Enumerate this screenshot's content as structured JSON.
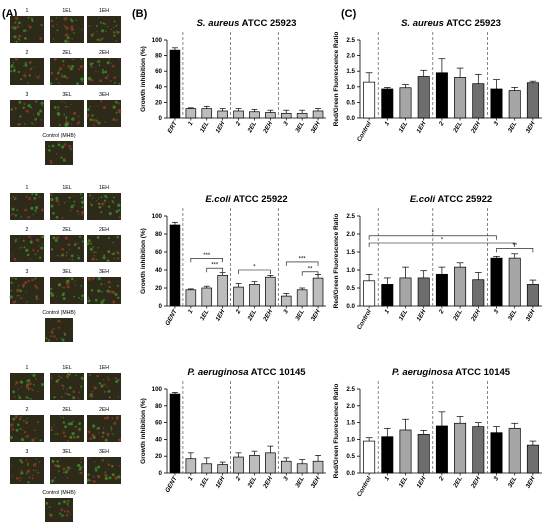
{
  "panel_labels": {
    "a": "(A)",
    "b": "(B)",
    "c": "(C)"
  },
  "colors": {
    "micro_bg": "#2e2a1a",
    "micro_green": "#3c8a2a",
    "micro_red": "#8a3a22",
    "bar_black": "#000000",
    "bar_white": "#ffffff",
    "bar_light": "#bdbdbd",
    "bar_mid": "#a6a6a6",
    "bar_dark": "#6e6e6e"
  },
  "micrographs": [
    {
      "tiles": [
        [
          {
            "label": "1"
          },
          {
            "label": "1EL"
          },
          {
            "label": "1EH"
          }
        ],
        [
          {
            "label": "2"
          },
          {
            "label": "2EL"
          },
          {
            "label": "2EH"
          }
        ],
        [
          {
            "label": "3"
          },
          {
            "label": "3EL"
          },
          {
            "label": "3EH"
          }
        ]
      ],
      "control": {
        "label": "Control (MHB)"
      }
    },
    {
      "tiles": [
        [
          {
            "label": "1"
          },
          {
            "label": "1EL"
          },
          {
            "label": "1EH"
          }
        ],
        [
          {
            "label": "2"
          },
          {
            "label": "2EL"
          },
          {
            "label": "2EH"
          }
        ],
        [
          {
            "label": "3"
          },
          {
            "label": "3EL"
          },
          {
            "label": "3EH"
          }
        ]
      ],
      "control": {
        "label": "Control (MHB)"
      }
    },
    {
      "tiles": [
        [
          {
            "label": "1"
          },
          {
            "label": "1EL"
          },
          {
            "label": "1EH"
          }
        ],
        [
          {
            "label": "2"
          },
          {
            "label": "2EL"
          },
          {
            "label": "2EH"
          }
        ],
        [
          {
            "label": "3"
          },
          {
            "label": "3EL"
          },
          {
            "label": "3EH"
          }
        ]
      ],
      "control": {
        "label": "Control (MHB)"
      }
    }
  ],
  "chart_data": [
    {
      "type": "bar",
      "title": "S. aureus ATCC 25923",
      "ylabel": "Growth inhibition (%)",
      "xlabel": "",
      "ylim": [
        0,
        100
      ],
      "yticks": [
        0,
        20,
        40,
        60,
        80,
        100
      ],
      "categories": [
        "ERT",
        "1",
        "1EL",
        "1EH",
        "2",
        "2EL",
        "2EH",
        "3",
        "3EL",
        "3EH"
      ],
      "values": [
        87,
        12,
        12,
        9,
        9,
        8,
        7,
        6,
        6,
        9
      ],
      "errors": [
        3,
        1,
        3,
        3,
        3,
        3,
        3,
        4,
        4,
        3
      ],
      "fills": [
        "#000000",
        "#bdbdbd",
        "#bdbdbd",
        "#bdbdbd",
        "#bdbdbd",
        "#bdbdbd",
        "#bdbdbd",
        "#bdbdbd",
        "#bdbdbd",
        "#bdbdbd"
      ],
      "separators_after": [
        0,
        3,
        6
      ],
      "significance": []
    },
    {
      "type": "bar",
      "title": "S. aureus ATCC 25923",
      "ylabel": "Red/Green Fluorescence Ratio",
      "xlabel": "",
      "ylim": [
        0,
        2.5
      ],
      "yticks": [
        0.0,
        0.5,
        1.0,
        1.5,
        2.0,
        2.5
      ],
      "categories": [
        "Control",
        "1",
        "1EL",
        "1EH",
        "2",
        "2EL",
        "2EH",
        "3",
        "3EL",
        "3EH"
      ],
      "values": [
        1.15,
        0.93,
        0.97,
        1.33,
        1.45,
        1.3,
        1.1,
        0.93,
        0.88,
        1.13
      ],
      "errors": [
        0.3,
        0.05,
        0.1,
        0.2,
        0.45,
        0.3,
        0.3,
        0.3,
        0.1,
        0.05
      ],
      "fills": [
        "#ffffff",
        "#000000",
        "#a6a6a6",
        "#6e6e6e",
        "#000000",
        "#a6a6a6",
        "#6e6e6e",
        "#000000",
        "#a6a6a6",
        "#6e6e6e"
      ],
      "separators_after": [
        0,
        3,
        6
      ],
      "significance": []
    },
    {
      "type": "bar",
      "title": "E.coli ATCC 25922",
      "ylabel": "Growth inhibition (%)",
      "xlabel": "",
      "ylim": [
        0,
        100
      ],
      "yticks": [
        0,
        20,
        40,
        60,
        80,
        100
      ],
      "categories": [
        "GENT",
        "1",
        "1EL",
        "1EH",
        "2",
        "2EL",
        "2EH",
        "3",
        "3EL",
        "3EH"
      ],
      "values": [
        90,
        18,
        20,
        34,
        21,
        24,
        32,
        11,
        18,
        31
      ],
      "errors": [
        3,
        1,
        2,
        3,
        4,
        3,
        2,
        3,
        2,
        4
      ],
      "fills": [
        "#000000",
        "#bdbdbd",
        "#bdbdbd",
        "#bdbdbd",
        "#bdbdbd",
        "#bdbdbd",
        "#bdbdbd",
        "#bdbdbd",
        "#bdbdbd",
        "#bdbdbd"
      ],
      "separators_after": [
        0,
        3,
        6
      ],
      "significance": [
        {
          "from": 1,
          "to": 3,
          "y": 53,
          "label": "***"
        },
        {
          "from": 2,
          "to": 3,
          "y": 42,
          "label": "***"
        },
        {
          "from": 4,
          "to": 6,
          "y": 40,
          "label": "*"
        },
        {
          "from": 7,
          "to": 9,
          "y": 49,
          "label": "***"
        },
        {
          "from": 8,
          "to": 9,
          "y": 38,
          "label": "**"
        }
      ]
    },
    {
      "type": "bar",
      "title": "E.coli ATCC 25922",
      "ylabel": "Red/Green Fluorescence Ratio",
      "xlabel": "",
      "ylim": [
        0,
        2.5
      ],
      "yticks": [
        0.0,
        0.5,
        1.0,
        1.5,
        2.0,
        2.5
      ],
      "categories": [
        "Control",
        "1",
        "1EL",
        "1EH",
        "2",
        "2EL",
        "2EH",
        "3",
        "3EL",
        "3EH"
      ],
      "values": [
        0.7,
        0.6,
        0.78,
        0.78,
        0.88,
        1.08,
        0.73,
        1.33,
        1.33,
        0.6
      ],
      "errors": [
        0.18,
        0.18,
        0.3,
        0.2,
        0.2,
        0.12,
        0.2,
        0.05,
        0.12,
        0.12
      ],
      "fills": [
        "#ffffff",
        "#000000",
        "#a6a6a6",
        "#6e6e6e",
        "#000000",
        "#a6a6a6",
        "#6e6e6e",
        "#000000",
        "#a6a6a6",
        "#6e6e6e"
      ],
      "separators_after": [
        0,
        3,
        6
      ],
      "significance": [
        {
          "from": 0,
          "to": 7,
          "y": 1.95,
          "label": "*"
        },
        {
          "from": 0,
          "to": 8,
          "y": 1.75,
          "label": "*"
        },
        {
          "from": 7,
          "to": 9,
          "y": 1.6,
          "label": "**"
        }
      ]
    },
    {
      "type": "bar",
      "title": "P. aeruginosa ATCC 10145",
      "ylabel": "Growth inhibition (%)",
      "xlabel": "",
      "ylim": [
        0,
        100
      ],
      "yticks": [
        0,
        20,
        40,
        60,
        80,
        100
      ],
      "categories": [
        "GENT",
        "1",
        "1EL",
        "1EH",
        "2",
        "2EL",
        "2EH",
        "3",
        "3EL",
        "3EH"
      ],
      "values": [
        94,
        17,
        11,
        10,
        19,
        21,
        24,
        14,
        11,
        14
      ],
      "errors": [
        2,
        7,
        7,
        3,
        5,
        5,
        8,
        4,
        5,
        7
      ],
      "fills": [
        "#000000",
        "#bdbdbd",
        "#bdbdbd",
        "#bdbdbd",
        "#bdbdbd",
        "#bdbdbd",
        "#bdbdbd",
        "#bdbdbd",
        "#bdbdbd",
        "#bdbdbd"
      ],
      "separators_after": [
        0,
        3,
        6
      ],
      "significance": []
    },
    {
      "type": "bar",
      "title": "P. aeruginosa ATCC 10145",
      "ylabel": "Red/Green Fluorescence Ratio",
      "xlabel": "",
      "ylim": [
        0,
        2.5
      ],
      "yticks": [
        0.0,
        0.5,
        1.0,
        1.5,
        2.0,
        2.5
      ],
      "categories": [
        "Control",
        "1",
        "1EL",
        "1EH",
        "2",
        "2EL",
        "2EH",
        "3",
        "3EL",
        "3EH"
      ],
      "values": [
        0.95,
        1.08,
        1.28,
        1.15,
        1.4,
        1.48,
        1.38,
        1.2,
        1.33,
        0.83
      ],
      "errors": [
        0.1,
        0.25,
        0.32,
        0.12,
        0.42,
        0.2,
        0.12,
        0.18,
        0.15,
        0.12
      ],
      "fills": [
        "#ffffff",
        "#000000",
        "#a6a6a6",
        "#6e6e6e",
        "#000000",
        "#a6a6a6",
        "#6e6e6e",
        "#000000",
        "#a6a6a6",
        "#6e6e6e"
      ],
      "separators_after": [
        0,
        3,
        6
      ],
      "significance": []
    }
  ]
}
